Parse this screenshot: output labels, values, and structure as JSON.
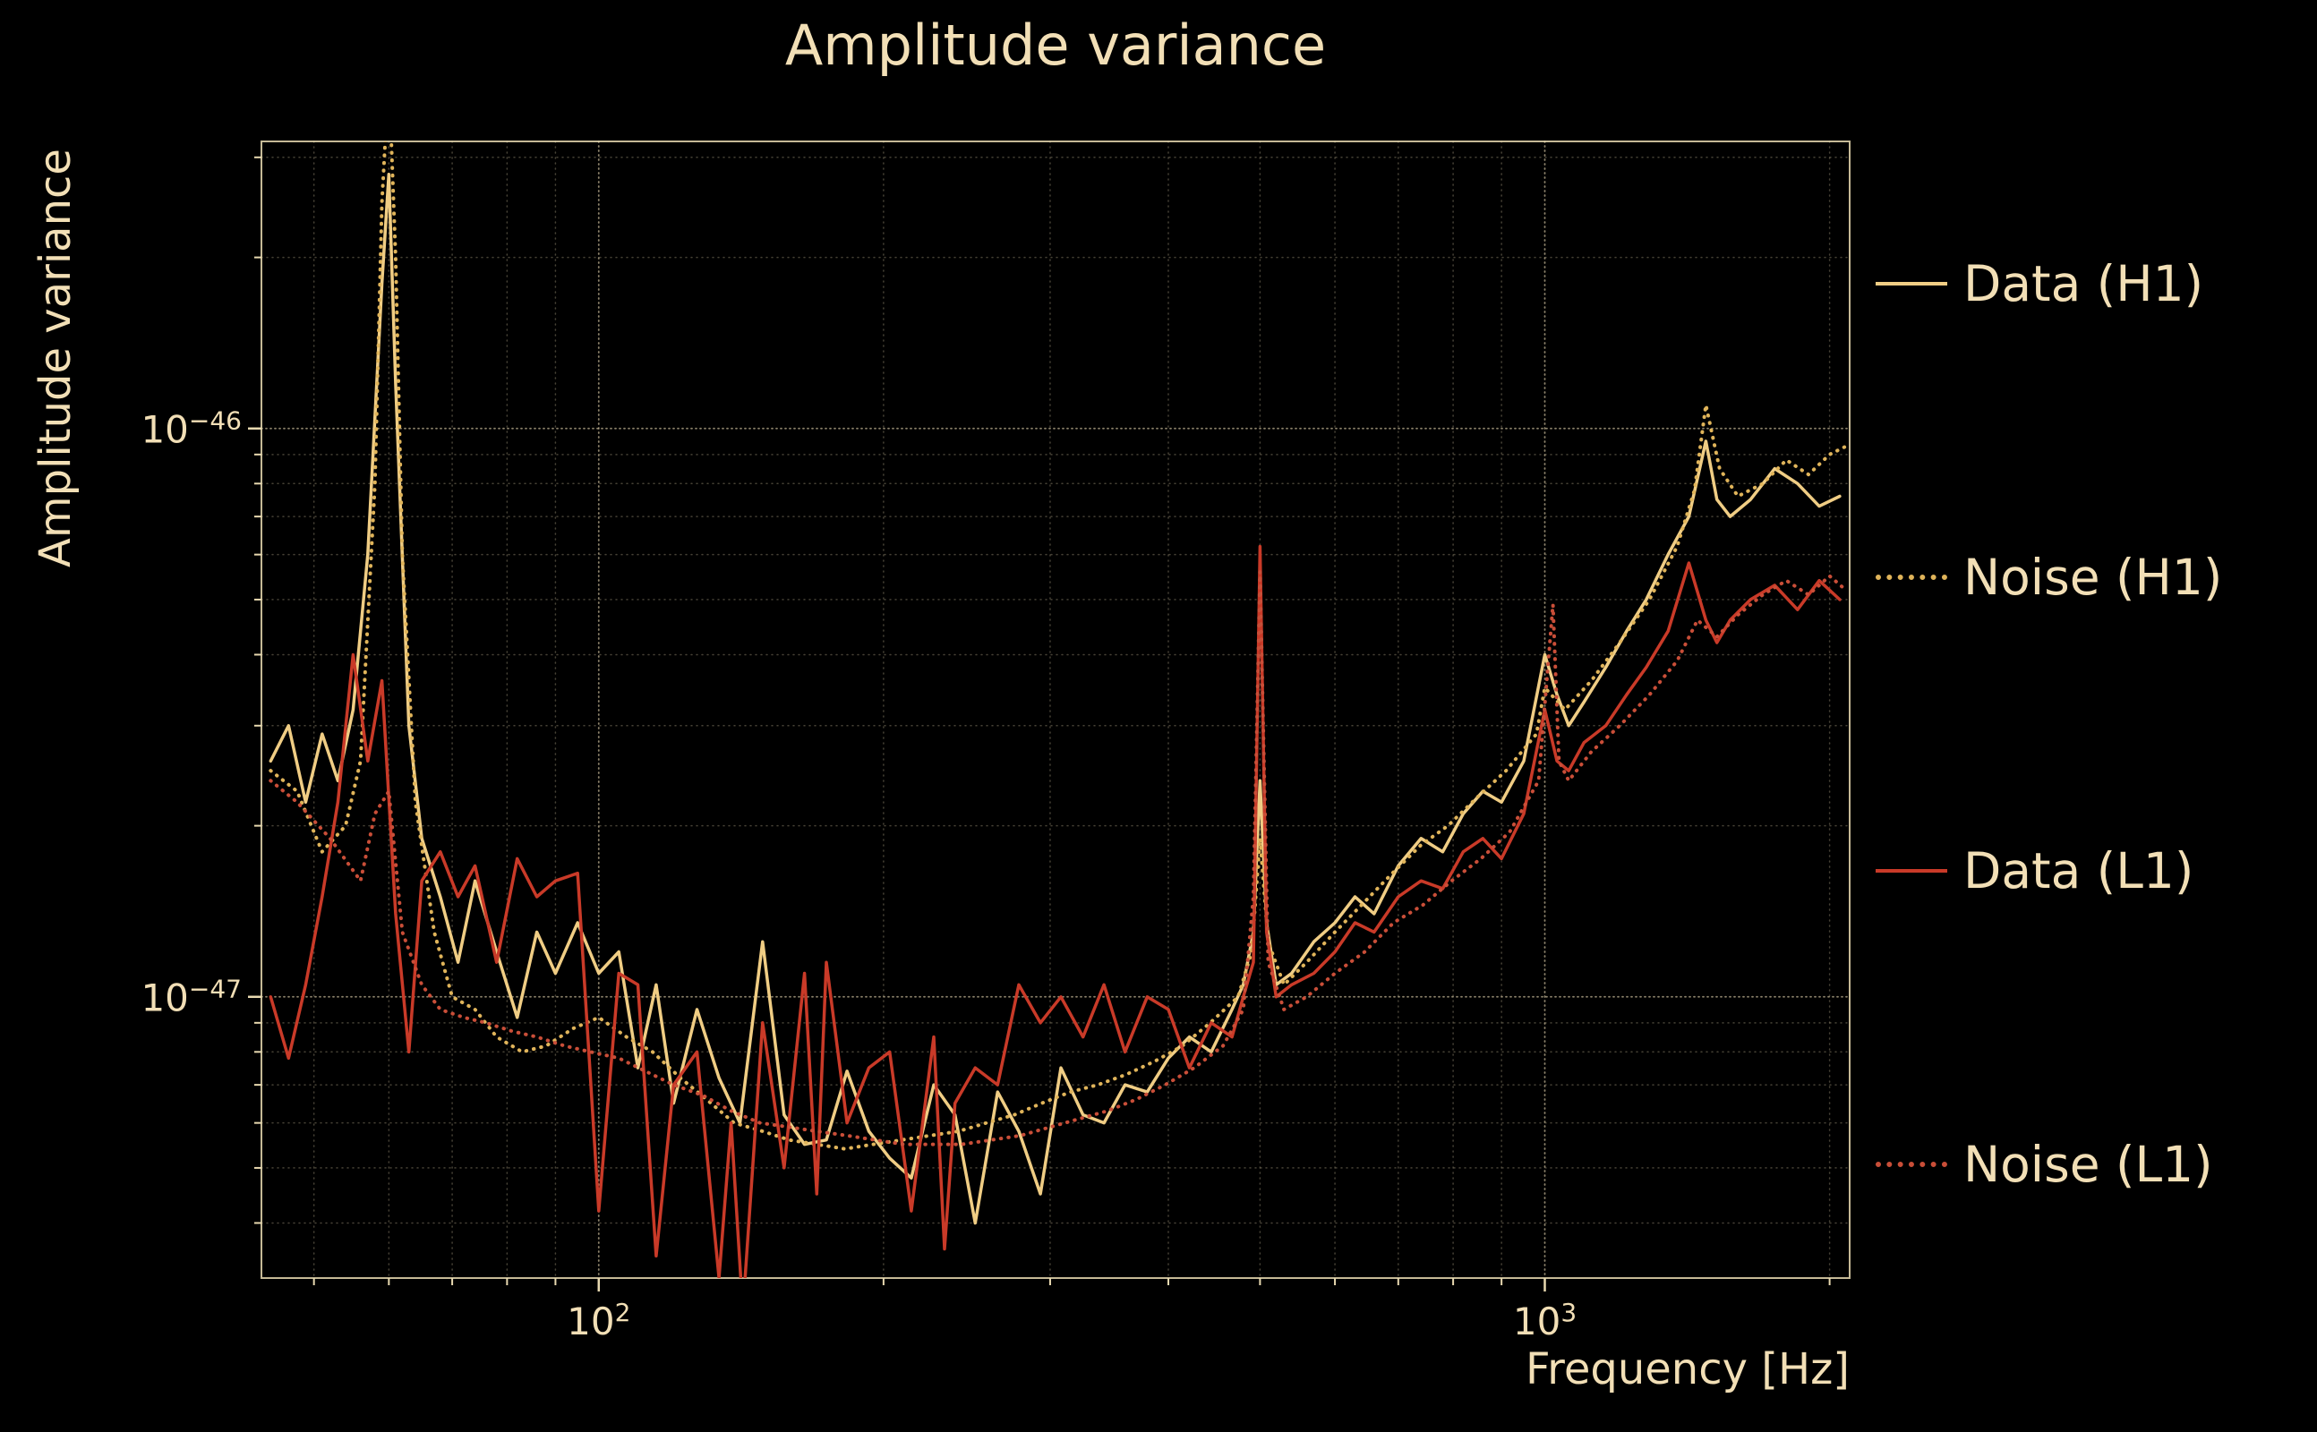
{
  "colors": {
    "background": "#000000",
    "text": "#f2dfb6",
    "grid": "#cbbd9b",
    "frame": "#e8d9b0",
    "data_h1": "#f0cd84",
    "noise_h1": "#e0b45a",
    "data_l1": "#c93a28",
    "noise_l1": "#c94e38"
  },
  "legend": [
    {
      "label": "Data (H1)",
      "series": "data_h1",
      "style": "solid"
    },
    {
      "label": "Noise (H1)",
      "series": "noise_h1",
      "style": "dotted"
    },
    {
      "label": "Data (L1)",
      "series": "data_l1",
      "style": "solid"
    },
    {
      "label": "Noise (L1)",
      "series": "noise_l1",
      "style": "dotted"
    }
  ],
  "chart_data": {
    "type": "line",
    "title": "Amplitude variance",
    "xlabel": "Frequency [Hz]",
    "ylabel": "Amplitude variance",
    "xscale": "log",
    "yscale": "log",
    "xlim": [
      44,
      2100
    ],
    "ylim": [
      3.2e-48,
      3.2e-46
    ],
    "grid": true,
    "legend_position": "right-outside",
    "y_unit": 1e-47,
    "x_major_ticks": [
      {
        "value": 100,
        "mantissa": "10",
        "exponent": "2"
      },
      {
        "value": 1000,
        "mantissa": "10",
        "exponent": "3"
      }
    ],
    "x_minor_ticks": [
      50,
      60,
      70,
      80,
      90,
      200,
      300,
      400,
      500,
      600,
      700,
      800,
      900,
      2000
    ],
    "y_major_ticks": [
      {
        "value": 1e-46,
        "mantissa": "10",
        "exponent": "−46"
      },
      {
        "value": 1e-47,
        "mantissa": "10",
        "exponent": "−47"
      }
    ],
    "y_minor_ticks": [
      4e-48,
      5e-48,
      6e-48,
      7e-48,
      8e-48,
      9e-48,
      2e-47,
      3e-47,
      4e-47,
      5e-47,
      6e-47,
      7e-47,
      8e-47,
      9e-47,
      2e-46,
      3e-46
    ],
    "series": [
      {
        "id": "data_h1",
        "name": "Data (H1)",
        "style": "solid",
        "color": "#f0cd84",
        "x": [
          45,
          47,
          49,
          51,
          53,
          55,
          57,
          59,
          60,
          61,
          63,
          65,
          68,
          71,
          74,
          78,
          82,
          86,
          90,
          95,
          100,
          105,
          110,
          115,
          120,
          127,
          134,
          141,
          149,
          157,
          165,
          174,
          183,
          193,
          203,
          214,
          226,
          238,
          250,
          264,
          278,
          293,
          308,
          325,
          342,
          360,
          380,
          400,
          421,
          444,
          467,
          480,
          492,
          500,
          508,
          520,
          540,
          570,
          600,
          630,
          660,
          700,
          740,
          780,
          820,
          860,
          900,
          950,
          1000,
          1030,
          1060,
          1100,
          1160,
          1220,
          1280,
          1350,
          1420,
          1480,
          1520,
          1570,
          1650,
          1750,
          1850,
          1950,
          2050
        ],
        "y": [
          2.6,
          3.0,
          2.2,
          2.9,
          2.4,
          3.2,
          6.0,
          18,
          28,
          12,
          3.0,
          1.9,
          1.5,
          1.15,
          1.6,
          1.2,
          0.92,
          1.3,
          1.1,
          1.35,
          1.1,
          1.2,
          0.75,
          1.05,
          0.65,
          0.95,
          0.72,
          0.6,
          1.25,
          0.62,
          0.55,
          0.56,
          0.74,
          0.58,
          0.52,
          0.48,
          0.7,
          0.62,
          0.4,
          0.68,
          0.58,
          0.45,
          0.75,
          0.62,
          0.6,
          0.7,
          0.68,
          0.78,
          0.85,
          0.8,
          0.95,
          1.05,
          1.3,
          2.4,
          1.35,
          1.05,
          1.1,
          1.25,
          1.35,
          1.5,
          1.4,
          1.7,
          1.9,
          1.8,
          2.1,
          2.3,
          2.2,
          2.6,
          4.0,
          3.4,
          3.0,
          3.3,
          3.8,
          4.4,
          5.0,
          6.0,
          7.0,
          9.5,
          7.5,
          7.0,
          7.5,
          8.5,
          8.0,
          7.3,
          7.6
        ]
      },
      {
        "id": "noise_h1",
        "name": "Noise (H1)",
        "style": "dotted",
        "color": "#e0b45a",
        "x": [
          45,
          48,
          51,
          54,
          56,
          58,
          59,
          60,
          61,
          62,
          64,
          67,
          70,
          74,
          78,
          83,
          88,
          94,
          100,
          107,
          114,
          122,
          130,
          139,
          149,
          159,
          170,
          182,
          195,
          209,
          224,
          240,
          257,
          275,
          294,
          315,
          337,
          361,
          387,
          414,
          443,
          474,
          490,
          500,
          510,
          530,
          560,
          600,
          640,
          690,
          740,
          790,
          850,
          910,
          980,
          1000,
          1050,
          1120,
          1200,
          1290,
          1380,
          1440,
          1480,
          1530,
          1600,
          1700,
          1800,
          1900,
          2000,
          2080
        ],
        "y": [
          2.5,
          2.3,
          1.8,
          2.0,
          2.6,
          8,
          25,
          42,
          20,
          6,
          2.2,
          1.3,
          1.0,
          0.95,
          0.85,
          0.8,
          0.82,
          0.88,
          0.92,
          0.85,
          0.8,
          0.72,
          0.66,
          0.6,
          0.58,
          0.56,
          0.55,
          0.54,
          0.55,
          0.56,
          0.57,
          0.58,
          0.6,
          0.62,
          0.65,
          0.68,
          0.7,
          0.73,
          0.77,
          0.82,
          0.9,
          1.0,
          1.2,
          1.9,
          1.25,
          1.05,
          1.15,
          1.3,
          1.45,
          1.65,
          1.85,
          2.0,
          2.25,
          2.5,
          2.9,
          3.5,
          3.2,
          3.6,
          4.2,
          5.0,
          6.2,
          7.8,
          11,
          8.5,
          7.6,
          8.0,
          8.8,
          8.3,
          9.0,
          9.3
        ]
      },
      {
        "id": "data_l1",
        "name": "Data (L1)",
        "style": "solid",
        "color": "#c93a28",
        "x": [
          45,
          47,
          49,
          51,
          53,
          55,
          57,
          59,
          61,
          63,
          65,
          68,
          71,
          74,
          78,
          82,
          86,
          90,
          95,
          100,
          105,
          110,
          115,
          120,
          127,
          134,
          138,
          142,
          149,
          157,
          165,
          170,
          174,
          183,
          193,
          203,
          214,
          226,
          232,
          238,
          250,
          264,
          278,
          293,
          308,
          325,
          342,
          360,
          380,
          400,
          421,
          444,
          467,
          480,
          492,
          500,
          508,
          520,
          540,
          570,
          600,
          630,
          660,
          700,
          740,
          780,
          820,
          860,
          900,
          950,
          1000,
          1030,
          1060,
          1100,
          1160,
          1220,
          1280,
          1350,
          1420,
          1480,
          1520,
          1570,
          1650,
          1750,
          1850,
          1950,
          2050
        ],
        "y": [
          1.0,
          0.78,
          1.05,
          1.5,
          2.2,
          4.0,
          2.6,
          3.6,
          1.4,
          0.8,
          1.6,
          1.8,
          1.5,
          1.7,
          1.15,
          1.75,
          1.5,
          1.6,
          1.65,
          0.42,
          1.1,
          1.05,
          0.35,
          0.7,
          0.8,
          0.32,
          0.6,
          0.28,
          0.9,
          0.5,
          1.1,
          0.45,
          1.15,
          0.6,
          0.75,
          0.8,
          0.42,
          0.85,
          0.36,
          0.65,
          0.75,
          0.7,
          1.05,
          0.9,
          1.0,
          0.85,
          1.05,
          0.8,
          1.0,
          0.95,
          0.75,
          0.9,
          0.85,
          1.0,
          1.15,
          6.2,
          1.3,
          1.0,
          1.05,
          1.1,
          1.2,
          1.35,
          1.3,
          1.5,
          1.6,
          1.55,
          1.8,
          1.9,
          1.75,
          2.1,
          3.2,
          2.6,
          2.5,
          2.8,
          3.0,
          3.4,
          3.8,
          4.4,
          5.8,
          4.6,
          4.2,
          4.6,
          5.0,
          5.3,
          4.8,
          5.4,
          5.0
        ]
      },
      {
        "id": "noise_l1",
        "name": "Noise (L1)",
        "style": "dotted",
        "color": "#c94e38",
        "x": [
          45,
          48,
          52,
          56,
          58,
          60,
          62,
          65,
          68,
          72,
          76,
          81,
          86,
          92,
          98,
          105,
          112,
          120,
          129,
          138,
          148,
          159,
          170,
          183,
          196,
          210,
          226,
          242,
          260,
          279,
          300,
          322,
          345,
          370,
          397,
          426,
          457,
          480,
          492,
          500,
          510,
          530,
          560,
          600,
          645,
          692,
          743,
          797,
          856,
          918,
          985,
          1020,
          1035,
          1060,
          1120,
          1200,
          1290,
          1380,
          1450,
          1520,
          1600,
          1700,
          1800,
          1900,
          2000,
          2080
        ],
        "y": [
          2.4,
          2.2,
          1.9,
          1.6,
          2.1,
          2.3,
          1.3,
          1.05,
          0.95,
          0.92,
          0.9,
          0.87,
          0.85,
          0.82,
          0.8,
          0.78,
          0.74,
          0.7,
          0.67,
          0.63,
          0.6,
          0.59,
          0.58,
          0.57,
          0.56,
          0.55,
          0.55,
          0.55,
          0.56,
          0.57,
          0.59,
          0.61,
          0.63,
          0.66,
          0.7,
          0.75,
          0.82,
          0.95,
          1.5,
          5.6,
          1.15,
          0.95,
          1.0,
          1.1,
          1.2,
          1.35,
          1.45,
          1.6,
          1.75,
          1.95,
          2.4,
          4.9,
          2.6,
          2.4,
          2.7,
          3.0,
          3.4,
          3.9,
          4.6,
          4.3,
          4.7,
          5.1,
          5.4,
          5.1,
          5.5,
          5.2
        ]
      }
    ]
  }
}
